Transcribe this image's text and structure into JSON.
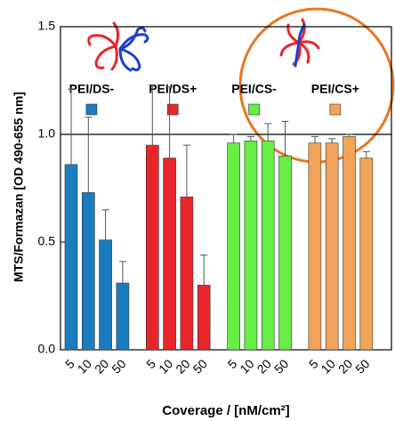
{
  "chart_data": {
    "type": "bar",
    "x_label": "Coverage / [nM/cm²]",
    "y_label": "MTS/Formazan [OD 490-655 nm]",
    "categories": [
      "5",
      "10",
      "20",
      "50"
    ],
    "series": [
      {
        "name": "PEI/DS-",
        "color": "#1b7dbf",
        "values": [
          0.86,
          0.73,
          0.51,
          0.31
        ],
        "errors": [
          0.35,
          0.35,
          0.14,
          0.1
        ]
      },
      {
        "name": "PEI/DS+",
        "color": "#e8262a",
        "values": [
          0.95,
          0.89,
          0.71,
          0.3
        ],
        "errors": [
          0.28,
          0.33,
          0.24,
          0.14
        ]
      },
      {
        "name": "PEI/CS-",
        "color": "#66ee44",
        "values": [
          0.96,
          0.97,
          0.97,
          0.9
        ],
        "errors": [
          0.04,
          0.02,
          0.08,
          0.16
        ]
      },
      {
        "name": "PEI/CS+",
        "color": "#f2a35a",
        "values": [
          0.96,
          0.96,
          0.99,
          0.89
        ],
        "errors": [
          0.03,
          0.02,
          0.01,
          0.03
        ]
      }
    ],
    "ylim": [
      0,
      1.5
    ],
    "yticks": [
      {
        "value": 0,
        "label": "0.0"
      },
      0.5,
      {
        "value": 1,
        "label": "1.0"
      },
      1.5
    ],
    "reference_line": 1
  }
}
